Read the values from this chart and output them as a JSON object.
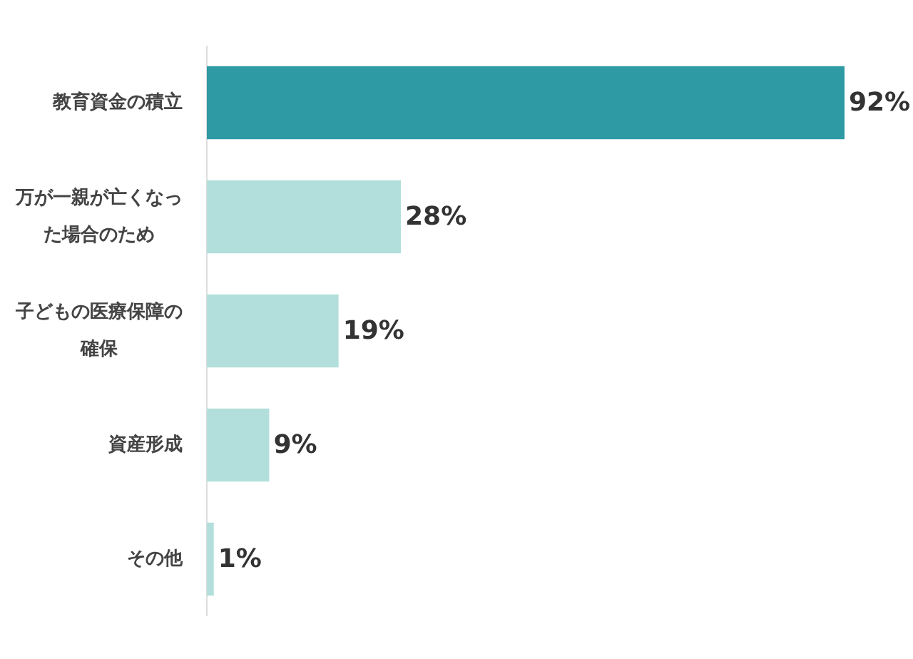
{
  "chart_data": {
    "type": "bar",
    "orientation": "horizontal",
    "categories": [
      "教育資金の積立",
      "万が一親が亡くなった場合のため",
      "子どもの医療保障の確保",
      "資産形成",
      "その他"
    ],
    "values": [
      92,
      28,
      19,
      9,
      1
    ],
    "colors": [
      "#2e9aa4",
      "#b2dfdb",
      "#b2dfdb",
      "#b2dfdb",
      "#b2dfdb"
    ],
    "value_labels": [
      "92%",
      "28%",
      "19%",
      "9%",
      "1%"
    ]
  }
}
